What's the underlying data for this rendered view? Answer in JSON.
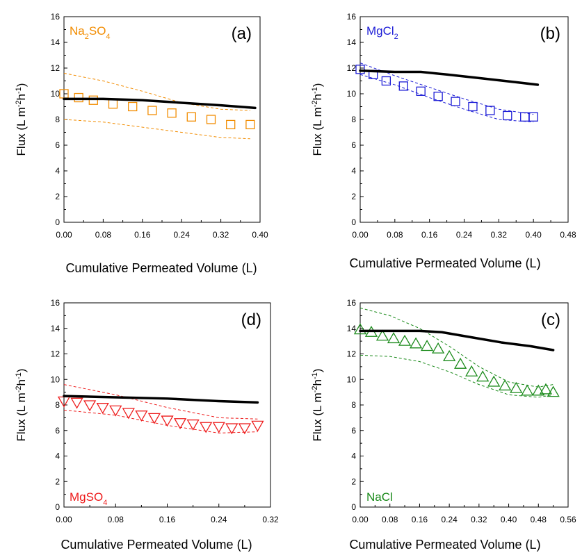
{
  "chart_data": [
    {
      "id": "a",
      "type": "scatter",
      "panel_label": "(a)",
      "solute": {
        "base": "Na",
        "sub1": "2",
        "mid": "SO",
        "sub2": "4"
      },
      "color": "#f28c00",
      "marker": "square",
      "xlabel": "Cumulative Permeated Volume  (L)",
      "ylabel": {
        "main": "Flux  (L m",
        "sup1": "-2",
        "mid": "h",
        "sup2": "-1",
        "end": ")"
      },
      "xlim": [
        0,
        0.4
      ],
      "ylim": [
        0,
        16
      ],
      "xticks": [
        "0.00",
        "0.08",
        "0.16",
        "0.24",
        "0.32",
        "0.40"
      ],
      "yticks": [
        "0",
        "2",
        "4",
        "6",
        "8",
        "10",
        "12",
        "14",
        "16"
      ],
      "series": [
        {
          "role": "measured",
          "x": [
            0.0,
            0.03,
            0.06,
            0.1,
            0.14,
            0.18,
            0.22,
            0.26,
            0.3,
            0.34,
            0.38
          ],
          "y": [
            10.0,
            9.7,
            9.5,
            9.2,
            9.0,
            8.7,
            8.5,
            8.2,
            8.0,
            7.6,
            7.6
          ]
        },
        {
          "role": "upper-bound",
          "x": [
            0.0,
            0.08,
            0.16,
            0.24,
            0.32,
            0.38
          ],
          "y": [
            11.6,
            11.0,
            10.2,
            9.3,
            8.8,
            8.7
          ]
        },
        {
          "role": "lower-bound",
          "x": [
            0.0,
            0.08,
            0.16,
            0.24,
            0.32,
            0.38
          ],
          "y": [
            8.0,
            7.8,
            7.4,
            7.0,
            6.6,
            6.5
          ]
        },
        {
          "role": "model",
          "x": [
            0.0,
            0.08,
            0.16,
            0.24,
            0.32,
            0.39
          ],
          "y": [
            9.6,
            9.6,
            9.5,
            9.3,
            9.1,
            8.9
          ]
        }
      ]
    },
    {
      "id": "b",
      "type": "scatter",
      "panel_label": "(b)",
      "solute": {
        "base": "MgCl",
        "sub1": "2",
        "mid": "",
        "sub2": ""
      },
      "color": "#1c1cd6",
      "marker": "square",
      "xlabel": "Cumulative Permeated Volume  (L)",
      "ylabel": {
        "main": "Flux  (L m",
        "sup1": "-2",
        "mid": "h",
        "sup2": "-1",
        "end": ")"
      },
      "xlim": [
        0,
        0.48
      ],
      "ylim": [
        0,
        16
      ],
      "xticks": [
        "0.00",
        "0.08",
        "0.16",
        "0.24",
        "0.32",
        "0.40",
        "0.48"
      ],
      "yticks": [
        "0",
        "2",
        "4",
        "6",
        "8",
        "10",
        "12",
        "14",
        "16"
      ],
      "series": [
        {
          "role": "measured",
          "x": [
            0.0,
            0.03,
            0.06,
            0.1,
            0.14,
            0.18,
            0.22,
            0.26,
            0.3,
            0.34,
            0.38,
            0.4
          ],
          "y": [
            11.9,
            11.5,
            11.0,
            10.6,
            10.2,
            9.8,
            9.4,
            9.0,
            8.7,
            8.3,
            8.2,
            8.2
          ]
        },
        {
          "role": "upper-bound",
          "x": [
            0.0,
            0.08,
            0.16,
            0.24,
            0.32,
            0.4
          ],
          "y": [
            12.4,
            11.4,
            10.5,
            9.6,
            8.8,
            8.4
          ]
        },
        {
          "role": "lower-bound",
          "x": [
            0.0,
            0.08,
            0.16,
            0.24,
            0.32,
            0.4
          ],
          "y": [
            11.5,
            10.7,
            9.7,
            8.8,
            8.0,
            7.8
          ]
        },
        {
          "role": "model",
          "x": [
            0.0,
            0.08,
            0.14,
            0.2,
            0.28,
            0.36,
            0.41
          ],
          "y": [
            11.8,
            11.7,
            11.7,
            11.5,
            11.2,
            10.9,
            10.7
          ]
        }
      ]
    },
    {
      "id": "d",
      "type": "scatter",
      "panel_label": "(d)",
      "solute": {
        "base": "MgSO",
        "sub1": "4",
        "mid": "",
        "sub2": ""
      },
      "color": "#ee1c1c",
      "marker": "triangle-down",
      "xlabel": "Cumulative Permeated Volume  (L)",
      "ylabel": {
        "main": "Flux  (L m",
        "sup1": "-2",
        "mid": "h",
        "sup2": "-1",
        "end": ")"
      },
      "xlim": [
        0,
        0.32
      ],
      "ylim": [
        0,
        16
      ],
      "xticks": [
        "0.00",
        "0.08",
        "0.16",
        "0.24",
        "0.32"
      ],
      "yticks": [
        "0",
        "2",
        "4",
        "6",
        "8",
        "10",
        "12",
        "14",
        "16"
      ],
      "series": [
        {
          "role": "measured",
          "x": [
            0.0,
            0.02,
            0.04,
            0.06,
            0.08,
            0.1,
            0.12,
            0.14,
            0.16,
            0.18,
            0.2,
            0.22,
            0.24,
            0.26,
            0.28,
            0.3
          ],
          "y": [
            8.3,
            8.2,
            8.0,
            7.8,
            7.6,
            7.4,
            7.2,
            7.0,
            6.8,
            6.6,
            6.5,
            6.3,
            6.3,
            6.2,
            6.2,
            6.4
          ]
        },
        {
          "role": "upper-bound",
          "x": [
            0.0,
            0.08,
            0.16,
            0.24,
            0.3
          ],
          "y": [
            9.6,
            8.8,
            7.8,
            7.0,
            6.9
          ]
        },
        {
          "role": "lower-bound",
          "x": [
            0.0,
            0.08,
            0.16,
            0.24,
            0.3
          ],
          "y": [
            7.6,
            7.2,
            6.4,
            5.8,
            5.9
          ]
        },
        {
          "role": "model",
          "x": [
            0.0,
            0.08,
            0.16,
            0.24,
            0.3
          ],
          "y": [
            8.7,
            8.6,
            8.5,
            8.3,
            8.2
          ]
        }
      ]
    },
    {
      "id": "c",
      "type": "scatter",
      "panel_label": "(c)",
      "solute": {
        "base": "NaCl",
        "sub1": "",
        "mid": "",
        "sub2": ""
      },
      "color": "#1a8a1a",
      "marker": "triangle-up",
      "xlabel": "Cumulative Permeated Volume  (L)",
      "ylabel": {
        "main": "Flux  (L m",
        "sup1": "-2",
        "mid": "h",
        "sup2": "-1",
        "end": ")"
      },
      "xlim": [
        0,
        0.56
      ],
      "ylim": [
        0,
        16
      ],
      "xticks": [
        "0.00",
        "0.08",
        "0.16",
        "0.24",
        "0.32",
        "0.40",
        "0.48",
        "0.56"
      ],
      "yticks": [
        "0",
        "2",
        "4",
        "6",
        "8",
        "10",
        "12",
        "14",
        "16"
      ],
      "series": [
        {
          "role": "measured",
          "x": [
            0.0,
            0.03,
            0.06,
            0.09,
            0.12,
            0.15,
            0.18,
            0.21,
            0.24,
            0.27,
            0.3,
            0.33,
            0.36,
            0.39,
            0.42,
            0.45,
            0.48,
            0.5,
            0.52
          ],
          "y": [
            13.9,
            13.7,
            13.4,
            13.2,
            13.0,
            12.8,
            12.6,
            12.4,
            11.8,
            11.2,
            10.6,
            10.2,
            9.8,
            9.5,
            9.3,
            9.1,
            9.1,
            9.2,
            9.0
          ]
        },
        {
          "role": "upper-bound",
          "x": [
            0.0,
            0.08,
            0.16,
            0.24,
            0.32,
            0.4,
            0.48,
            0.52
          ],
          "y": [
            15.6,
            15.0,
            14.0,
            12.6,
            11.0,
            9.8,
            9.4,
            9.6
          ]
        },
        {
          "role": "lower-bound",
          "x": [
            0.0,
            0.08,
            0.16,
            0.24,
            0.32,
            0.4,
            0.48,
            0.52
          ],
          "y": [
            11.9,
            11.8,
            11.4,
            10.6,
            9.6,
            8.8,
            8.6,
            8.8
          ]
        },
        {
          "role": "model",
          "x": [
            0.0,
            0.08,
            0.16,
            0.22,
            0.3,
            0.38,
            0.46,
            0.52
          ],
          "y": [
            13.8,
            13.8,
            13.8,
            13.7,
            13.3,
            12.9,
            12.6,
            12.3
          ]
        }
      ]
    }
  ]
}
